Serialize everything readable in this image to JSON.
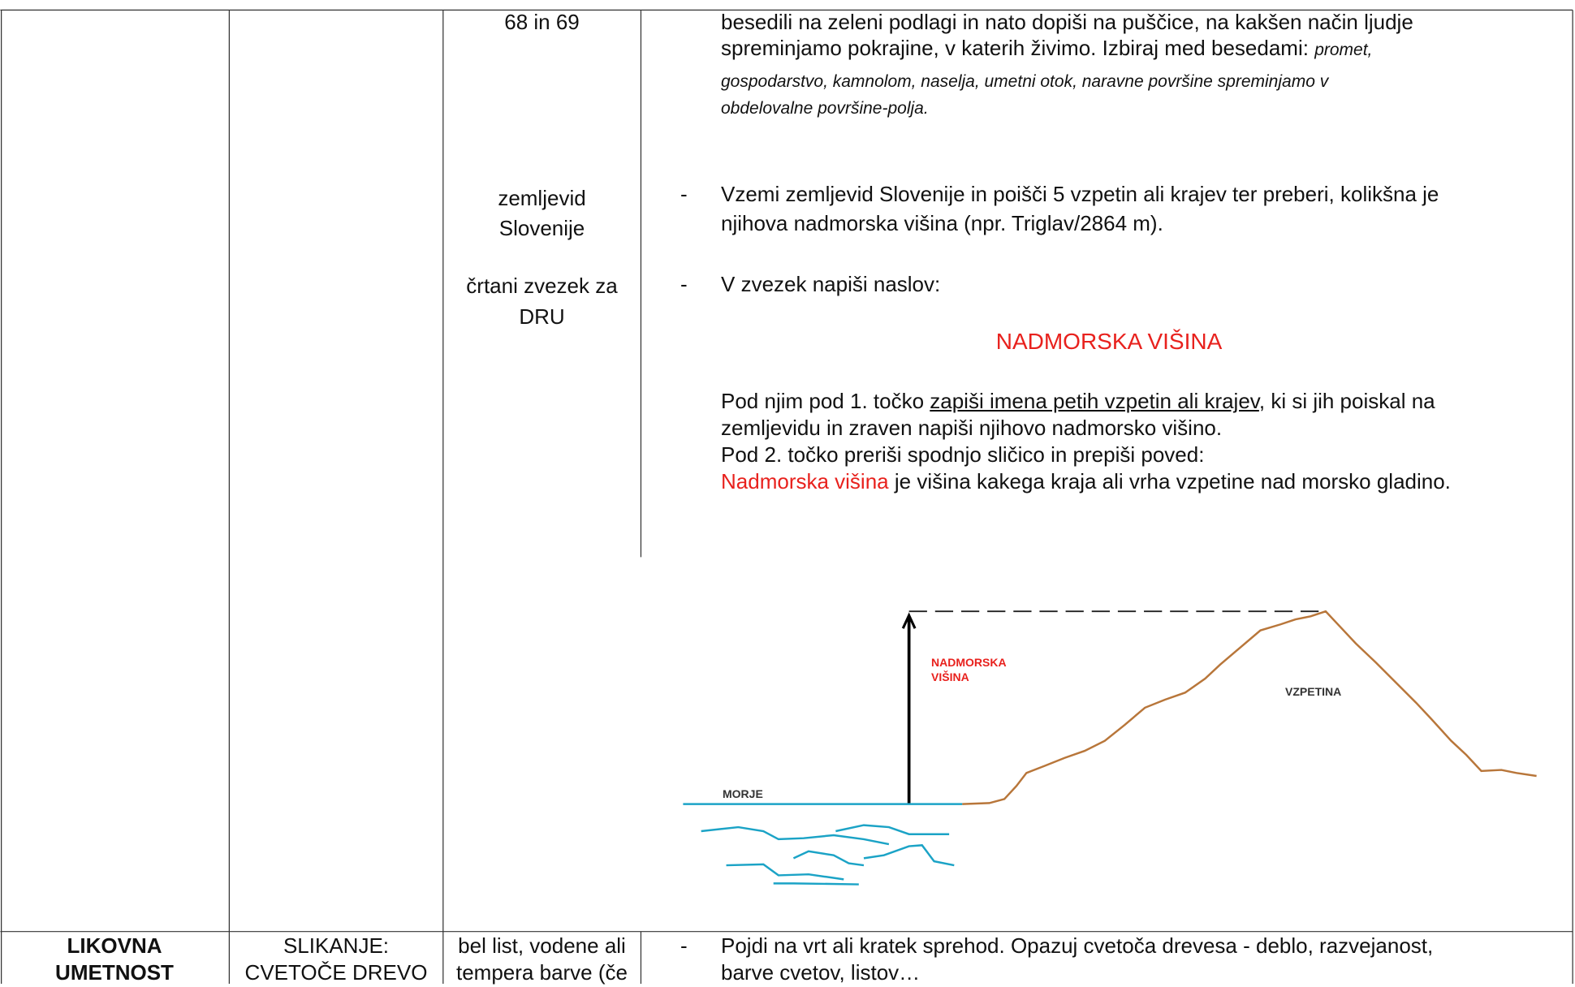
{
  "top_row": {
    "materials": {
      "pages": "68 in 69",
      "map": [
        "zemljevid",
        "Slovenije"
      ],
      "notebook": [
        "črtani zvezek za",
        "DRU"
      ]
    },
    "instructions": {
      "intro_lines": [
        {
          "text": "besedili na zeleni podlagi in nato dopiši na puščice, na kakšen način ljudje"
        },
        {
          "text": "spreminjamo pokrajine, v katerih živimo. Izbiraj med besedami: ",
          "italic": "promet,"
        },
        {
          "italic": "gospodarstvo, kamnolom, naselja, umetni otok, naravne površine spreminjamo v"
        },
        {
          "italic": "obdelovalne površine-polja."
        }
      ],
      "items": [
        {
          "marker": "-",
          "lines": [
            "Vzemi zemljevid Slovenije in poišči 5 vzpetin ali krajev ter preberi, kolikšna je",
            "njihova nadmorska višina (npr. Triglav/2864 m)."
          ]
        },
        {
          "marker": "-",
          "lines": [
            "V zvezek napiši naslov:"
          ]
        }
      ],
      "heading": "NADMORSKA VIŠINA",
      "task_1": {
        "before": "Pod njim pod 1. točko ",
        "underlined": "zapiši imena petih vzpetin ali krajev",
        "after": ", ki si jih poiskal na"
      },
      "task_1_cont": "zemljevidu in zraven napiši njihovo nadmorsko višino.",
      "task_2": "Pod 2. točko preriši spodnjo sličico in prepiši poved:",
      "definition": {
        "term": "Nadmorska višina",
        "rest": " je višina kakega kraja ali vrha vzpetine nad morsko gladino."
      },
      "diagram": {
        "height_label": [
          "NADMORSKA",
          "VIŠINA"
        ],
        "hill_label": "VZPETINA",
        "sea_label": "MORJE"
      }
    }
  },
  "bottom_row": {
    "subject": [
      "LIKOVNA",
      "UMETNOST"
    ],
    "topic": [
      "SLIKANJE:",
      "CVETOČE DREVO"
    ],
    "materials": [
      "bel list, vodene ali",
      "tempera barve (če"
    ],
    "item": {
      "marker": "-",
      "lines": [
        "Pojdi na vrt ali kratek sprehod. Opazuj cvetoča drevesa - deblo, razvejanost,",
        "barve cvetov, listov…"
      ]
    }
  }
}
